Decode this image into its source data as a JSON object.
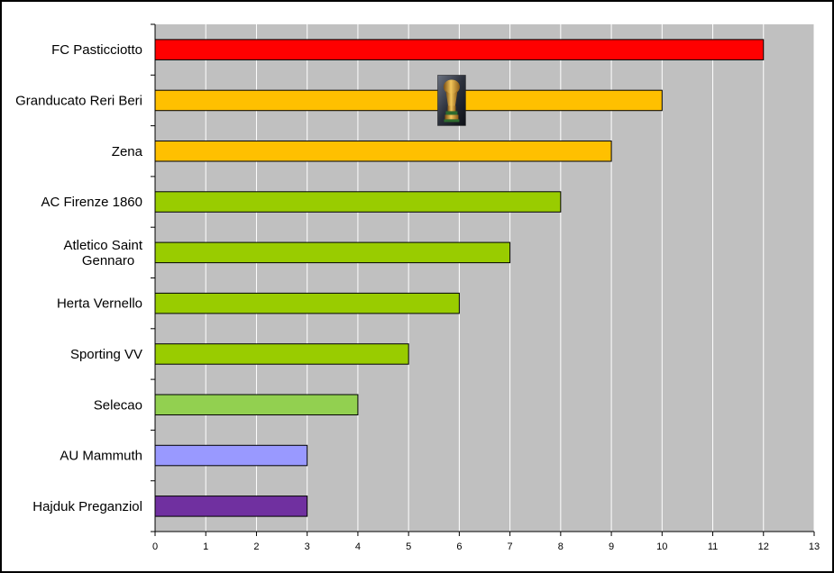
{
  "chart_data": {
    "type": "bar",
    "orientation": "horizontal",
    "categories": [
      "FC Pasticciotto",
      "Granducato Reri Beri",
      "Zena",
      "AC Firenze 1860",
      "Atletico Saint Gennaro",
      "Herta Vernello",
      "Sporting VV",
      "Selecao",
      "AU Mammuth",
      "Hajduk Preganziol"
    ],
    "values": [
      12,
      10,
      9,
      8,
      7,
      6,
      5,
      4,
      3,
      3
    ],
    "bar_colors": [
      "#ff0000",
      "#ffc000",
      "#ffc000",
      "#99cc00",
      "#99cc00",
      "#99cc00",
      "#99cc00",
      "#92d050",
      "#9999ff",
      "#7030a0"
    ],
    "xlim": [
      0,
      13
    ],
    "xticks": [
      0,
      1,
      2,
      3,
      4,
      5,
      6,
      7,
      8,
      9,
      10,
      11,
      12,
      13
    ],
    "grid": "vertical",
    "plot_background": "#c0c0c0",
    "trophy_icon": {
      "name": "trophy-icon",
      "category": "Granducato Reri Beri",
      "x_value": 5.85
    }
  }
}
